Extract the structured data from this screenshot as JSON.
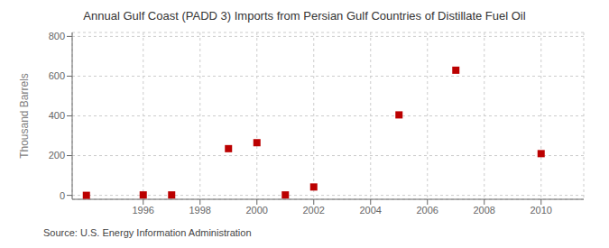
{
  "chart_data": {
    "type": "scatter",
    "title": "Annual Gulf Coast (PADD 3) Imports from Persian Gulf Countries of Distillate Fuel Oil",
    "ylabel": "Thousand Barrels",
    "source": "Source: U.S. Energy Information Administration",
    "x": [
      1994,
      1996,
      1997,
      1999,
      2000,
      2001,
      2002,
      2005,
      2007,
      2010
    ],
    "values": [
      0,
      2,
      2,
      235,
      265,
      2,
      42,
      405,
      630,
      210
    ],
    "color": "#bb0000",
    "marker": "square",
    "xlim": [
      1993.5,
      2011.5
    ],
    "ylim": [
      -20,
      820
    ],
    "xticks": [
      1996,
      1998,
      2000,
      2002,
      2004,
      2006,
      2008,
      2010
    ],
    "yticks": [
      0,
      200,
      400,
      600,
      800
    ],
    "grid": true
  }
}
